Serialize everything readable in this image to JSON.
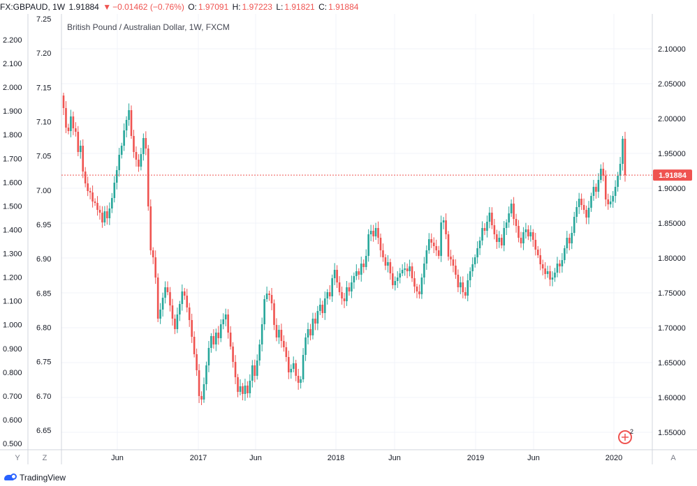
{
  "header": {
    "symbol": "FX:GBPAUD, 1W",
    "last": "1.91884",
    "change": "−0.01462 (−0.76%)",
    "open_label": "O:",
    "open": "1.97091",
    "high_label": "H:",
    "high": "1.97223",
    "low_label": "L:",
    "low": "1.91821",
    "close_label": "C:",
    "close": "1.91884"
  },
  "chart_data": {
    "type": "candlestick",
    "title": "British Pound / Australian Dollar, 1W, FXCM",
    "current_price_label": "1.91884",
    "current_price": 1.91884,
    "right_axis": {
      "ticks": [
        "1.55000",
        "1.60000",
        "1.65000",
        "1.70000",
        "1.75000",
        "1.80000",
        "1.85000",
        "1.90000",
        "1.95000",
        "2.00000",
        "2.05000",
        "2.10000"
      ],
      "range": [
        1.522,
        2.122
      ]
    },
    "left_axis_outer": {
      "ticks": [
        "0.500",
        "0.600",
        "0.700",
        "0.800",
        "0.900",
        "1.000",
        "1.100",
        "1.200",
        "1.300",
        "1.400",
        "1.500",
        "1.600",
        "1.700",
        "1.800",
        "1.900",
        "2.000",
        "2.100",
        "2.200"
      ]
    },
    "left_axis_inner": {
      "ticks": [
        "6.65",
        "6.70",
        "6.75",
        "6.80",
        "6.85",
        "6.90",
        "6.95",
        "7.00",
        "7.05",
        "7.10",
        "7.15",
        "7.20",
        "7.25"
      ]
    },
    "x_ticks": [
      "Jun",
      "2017",
      "Jun",
      "2018",
      "Jun",
      "2019",
      "Jun",
      "2020"
    ],
    "axis_buttons": [
      "Y",
      "Z",
      "A"
    ],
    "closes": [
      2.015,
      1.987,
      1.982,
      2.003,
      1.986,
      1.981,
      1.952,
      1.961,
      1.924,
      1.907,
      1.896,
      1.894,
      1.881,
      1.879,
      1.869,
      1.865,
      1.851,
      1.867,
      1.857,
      1.871,
      1.886,
      1.908,
      1.926,
      1.948,
      1.961,
      1.983,
      1.998,
      2.012,
      1.975,
      1.952,
      1.941,
      1.931,
      1.949,
      1.972,
      1.957,
      1.874,
      1.811,
      1.801,
      1.772,
      1.713,
      1.726,
      1.743,
      1.758,
      1.751,
      1.732,
      1.713,
      1.698,
      1.719,
      1.734,
      1.752,
      1.746,
      1.729,
      1.711,
      1.687,
      1.662,
      1.639,
      1.602,
      1.597,
      1.619,
      1.646,
      1.671,
      1.688,
      1.676,
      1.693,
      1.685,
      1.705,
      1.712,
      1.719,
      1.693,
      1.673,
      1.651,
      1.629,
      1.608,
      1.616,
      1.605,
      1.617,
      1.606,
      1.624,
      1.646,
      1.631,
      1.653,
      1.676,
      1.705,
      1.741,
      1.749,
      1.747,
      1.735,
      1.704,
      1.686,
      1.697,
      1.681,
      1.672,
      1.658,
      1.636,
      1.641,
      1.649,
      1.631,
      1.621,
      1.626,
      1.661,
      1.686,
      1.698,
      1.689,
      1.713,
      1.706,
      1.724,
      1.733,
      1.721,
      1.742,
      1.751,
      1.745,
      1.771,
      1.783,
      1.765,
      1.751,
      1.742,
      1.738,
      1.758,
      1.752,
      1.765,
      1.774,
      1.781,
      1.776,
      1.792,
      1.787,
      1.803,
      1.834,
      1.839,
      1.831,
      1.843,
      1.829,
      1.811,
      1.801,
      1.789,
      1.794,
      1.778,
      1.761,
      1.767,
      1.772,
      1.778,
      1.783,
      1.785,
      1.781,
      1.788,
      1.771,
      1.759,
      1.752,
      1.748,
      1.772,
      1.792,
      1.811,
      1.827,
      1.822,
      1.817,
      1.811,
      1.803,
      1.851,
      1.854,
      1.834,
      1.802,
      1.798,
      1.789,
      1.776,
      1.758,
      1.765,
      1.751,
      1.746,
      1.768,
      1.781,
      1.791,
      1.801,
      1.814,
      1.825,
      1.843,
      1.839,
      1.852,
      1.865,
      1.847,
      1.834,
      1.823,
      1.829,
      1.818,
      1.843,
      1.851,
      1.864,
      1.878,
      1.856,
      1.846,
      1.829,
      1.821,
      1.837,
      1.841,
      1.831,
      1.837,
      1.826,
      1.812,
      1.804,
      1.791,
      1.785,
      1.777,
      1.781,
      1.769,
      1.772,
      1.779,
      1.792,
      1.788,
      1.797,
      1.814,
      1.829,
      1.821,
      1.836,
      1.859,
      1.873,
      1.885,
      1.876,
      1.869,
      1.858,
      1.872,
      1.889,
      1.902,
      1.895,
      1.912,
      1.928,
      1.918,
      1.884,
      1.877,
      1.881,
      1.889,
      1.902,
      1.918,
      1.935,
      1.971,
      1.9188
    ]
  }
}
